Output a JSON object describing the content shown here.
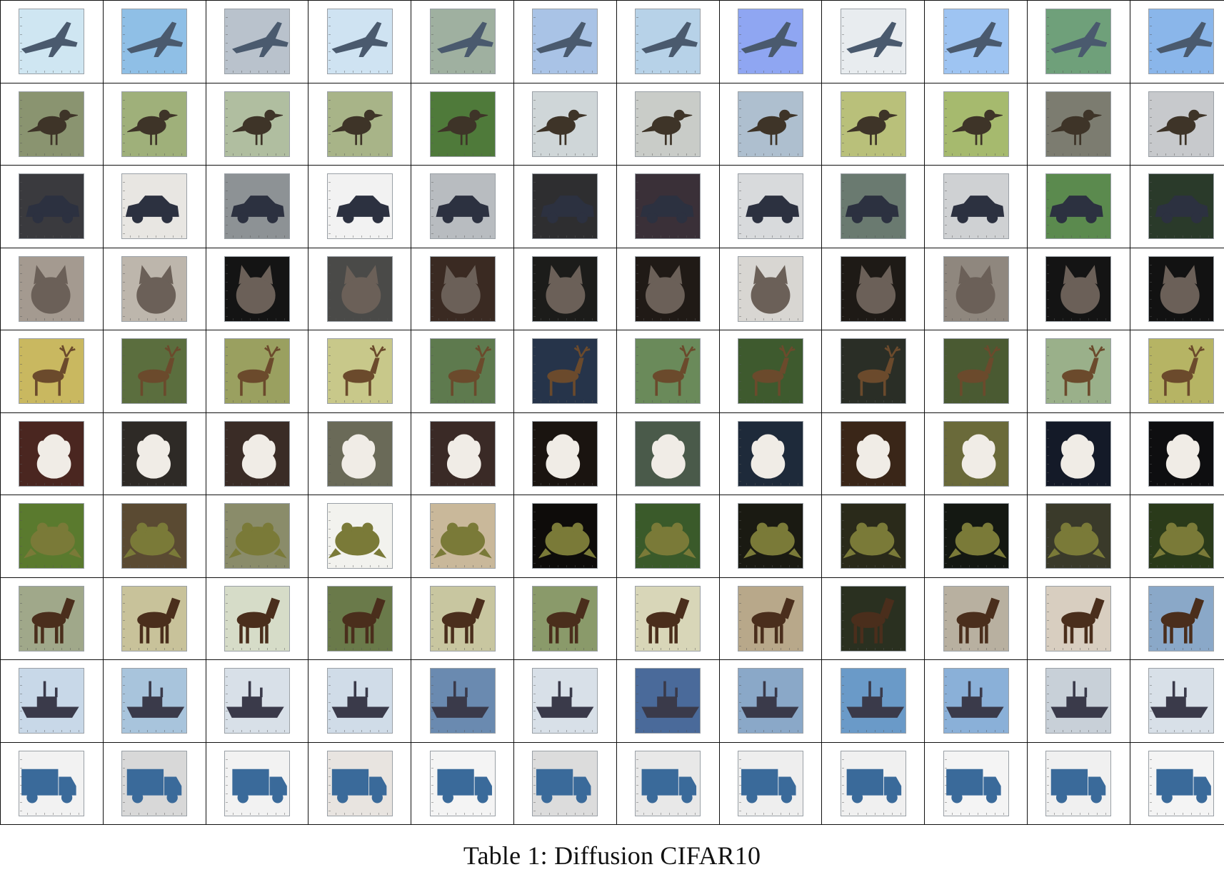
{
  "caption": "Table 1: Diffusion CIFAR10",
  "rows": [
    {
      "class": "airplane",
      "icon": "airplane-icon",
      "fg": "#4a5a6e",
      "bgs": [
        "#cfe6f2",
        "#8fbfe6",
        "#b9c2cc",
        "#cfe3f2",
        "#9fb0a0",
        "#a9c3e6",
        "#b7d2e8",
        "#8fa6f2",
        "#e8ecef",
        "#9ec4f2",
        "#6fa07a",
        "#8ab6ea"
      ]
    },
    {
      "class": "bird",
      "icon": "bird-icon",
      "fg": "#3e3428",
      "bgs": [
        "#8a9470",
        "#9fb07a",
        "#b0bea0",
        "#a8b488",
        "#4f7a3a",
        "#cfd6d8",
        "#c9ccc8",
        "#aebfcf",
        "#b9c07a",
        "#a6ba6e",
        "#7c7c70",
        "#c7c9cc"
      ]
    },
    {
      "class": "automobile",
      "icon": "car-icon",
      "fg": "#2c3140",
      "bgs": [
        "#3a3a3e",
        "#e8e6e2",
        "#8d9295",
        "#f2f2f2",
        "#b8bcc0",
        "#2e2e30",
        "#3a3038",
        "#d8dadc",
        "#6a7a70",
        "#cfd1d3",
        "#5b8a4e",
        "#2a3a2a"
      ]
    },
    {
      "class": "cat",
      "icon": "cat-icon",
      "fg": "#6b6058",
      "bgs": [
        "#a49a90",
        "#bdb6ac",
        "#141414",
        "#4a4a48",
        "#3a2a22",
        "#1c1c1a",
        "#201a16",
        "#d8d6d2",
        "#1e1a16",
        "#8f877e",
        "#141414",
        "#121212"
      ]
    },
    {
      "class": "deer",
      "icon": "deer-icon",
      "fg": "#6b4a2c",
      "bgs": [
        "#c9b860",
        "#5b6e3e",
        "#9aa060",
        "#c8c88a",
        "#5e7a4e",
        "#26344a",
        "#6a8a5a",
        "#3e5a2e",
        "#2a2e26",
        "#4a5a32",
        "#9ab08a",
        "#b6b464"
      ]
    },
    {
      "class": "dog",
      "icon": "dog-icon",
      "fg": "#f0ece6",
      "bgs": [
        "#4a2620",
        "#2e2a26",
        "#3a2c26",
        "#6a6a58",
        "#3a2a26",
        "#1a1410",
        "#4a5a4a",
        "#1e2a3a",
        "#3a2618",
        "#6a6a3a",
        "#141a28",
        "#0e0e10"
      ]
    },
    {
      "class": "frog",
      "icon": "frog-icon",
      "fg": "#7a7a38",
      "bgs": [
        "#5a7a2e",
        "#5a4a32",
        "#8a8c6a",
        "#f2f2ee",
        "#c9b89a",
        "#0e0c0a",
        "#3a5a2a",
        "#1a1a12",
        "#2a2a1a",
        "#141812",
        "#3a3a2a",
        "#2a3a1a"
      ]
    },
    {
      "class": "horse",
      "icon": "horse-icon",
      "fg": "#4a2e1c",
      "bgs": [
        "#a0a88a",
        "#c8c29a",
        "#d6dcc8",
        "#6a7a4a",
        "#c8c6a0",
        "#8a9a6a",
        "#d8d6b8",
        "#b8a88a",
        "#2a3020",
        "#b8b0a0",
        "#d8cec0",
        "#8aa8c8"
      ]
    },
    {
      "class": "ship",
      "icon": "ship-icon",
      "fg": "#3a3a4a",
      "bgs": [
        "#c8d8e8",
        "#a8c4dc",
        "#d8e0e8",
        "#d0dce8",
        "#6a8ab0",
        "#d8e0e8",
        "#4a6a9a",
        "#8aa8c8",
        "#6a9ac8",
        "#8ab0d8",
        "#c8d0d8",
        "#d8e0e8"
      ]
    },
    {
      "class": "truck",
      "icon": "truck-icon",
      "fg": "#3a6a9a",
      "bgs": [
        "#f2f2f2",
        "#d8d8d8",
        "#f2f2f2",
        "#e8e4e0",
        "#f4f4f4",
        "#dcdcdc",
        "#e8e8e8",
        "#eeeeee",
        "#f0f0f0",
        "#f4f4f4",
        "#f0f0f0",
        "#f4f4f4"
      ]
    }
  ]
}
